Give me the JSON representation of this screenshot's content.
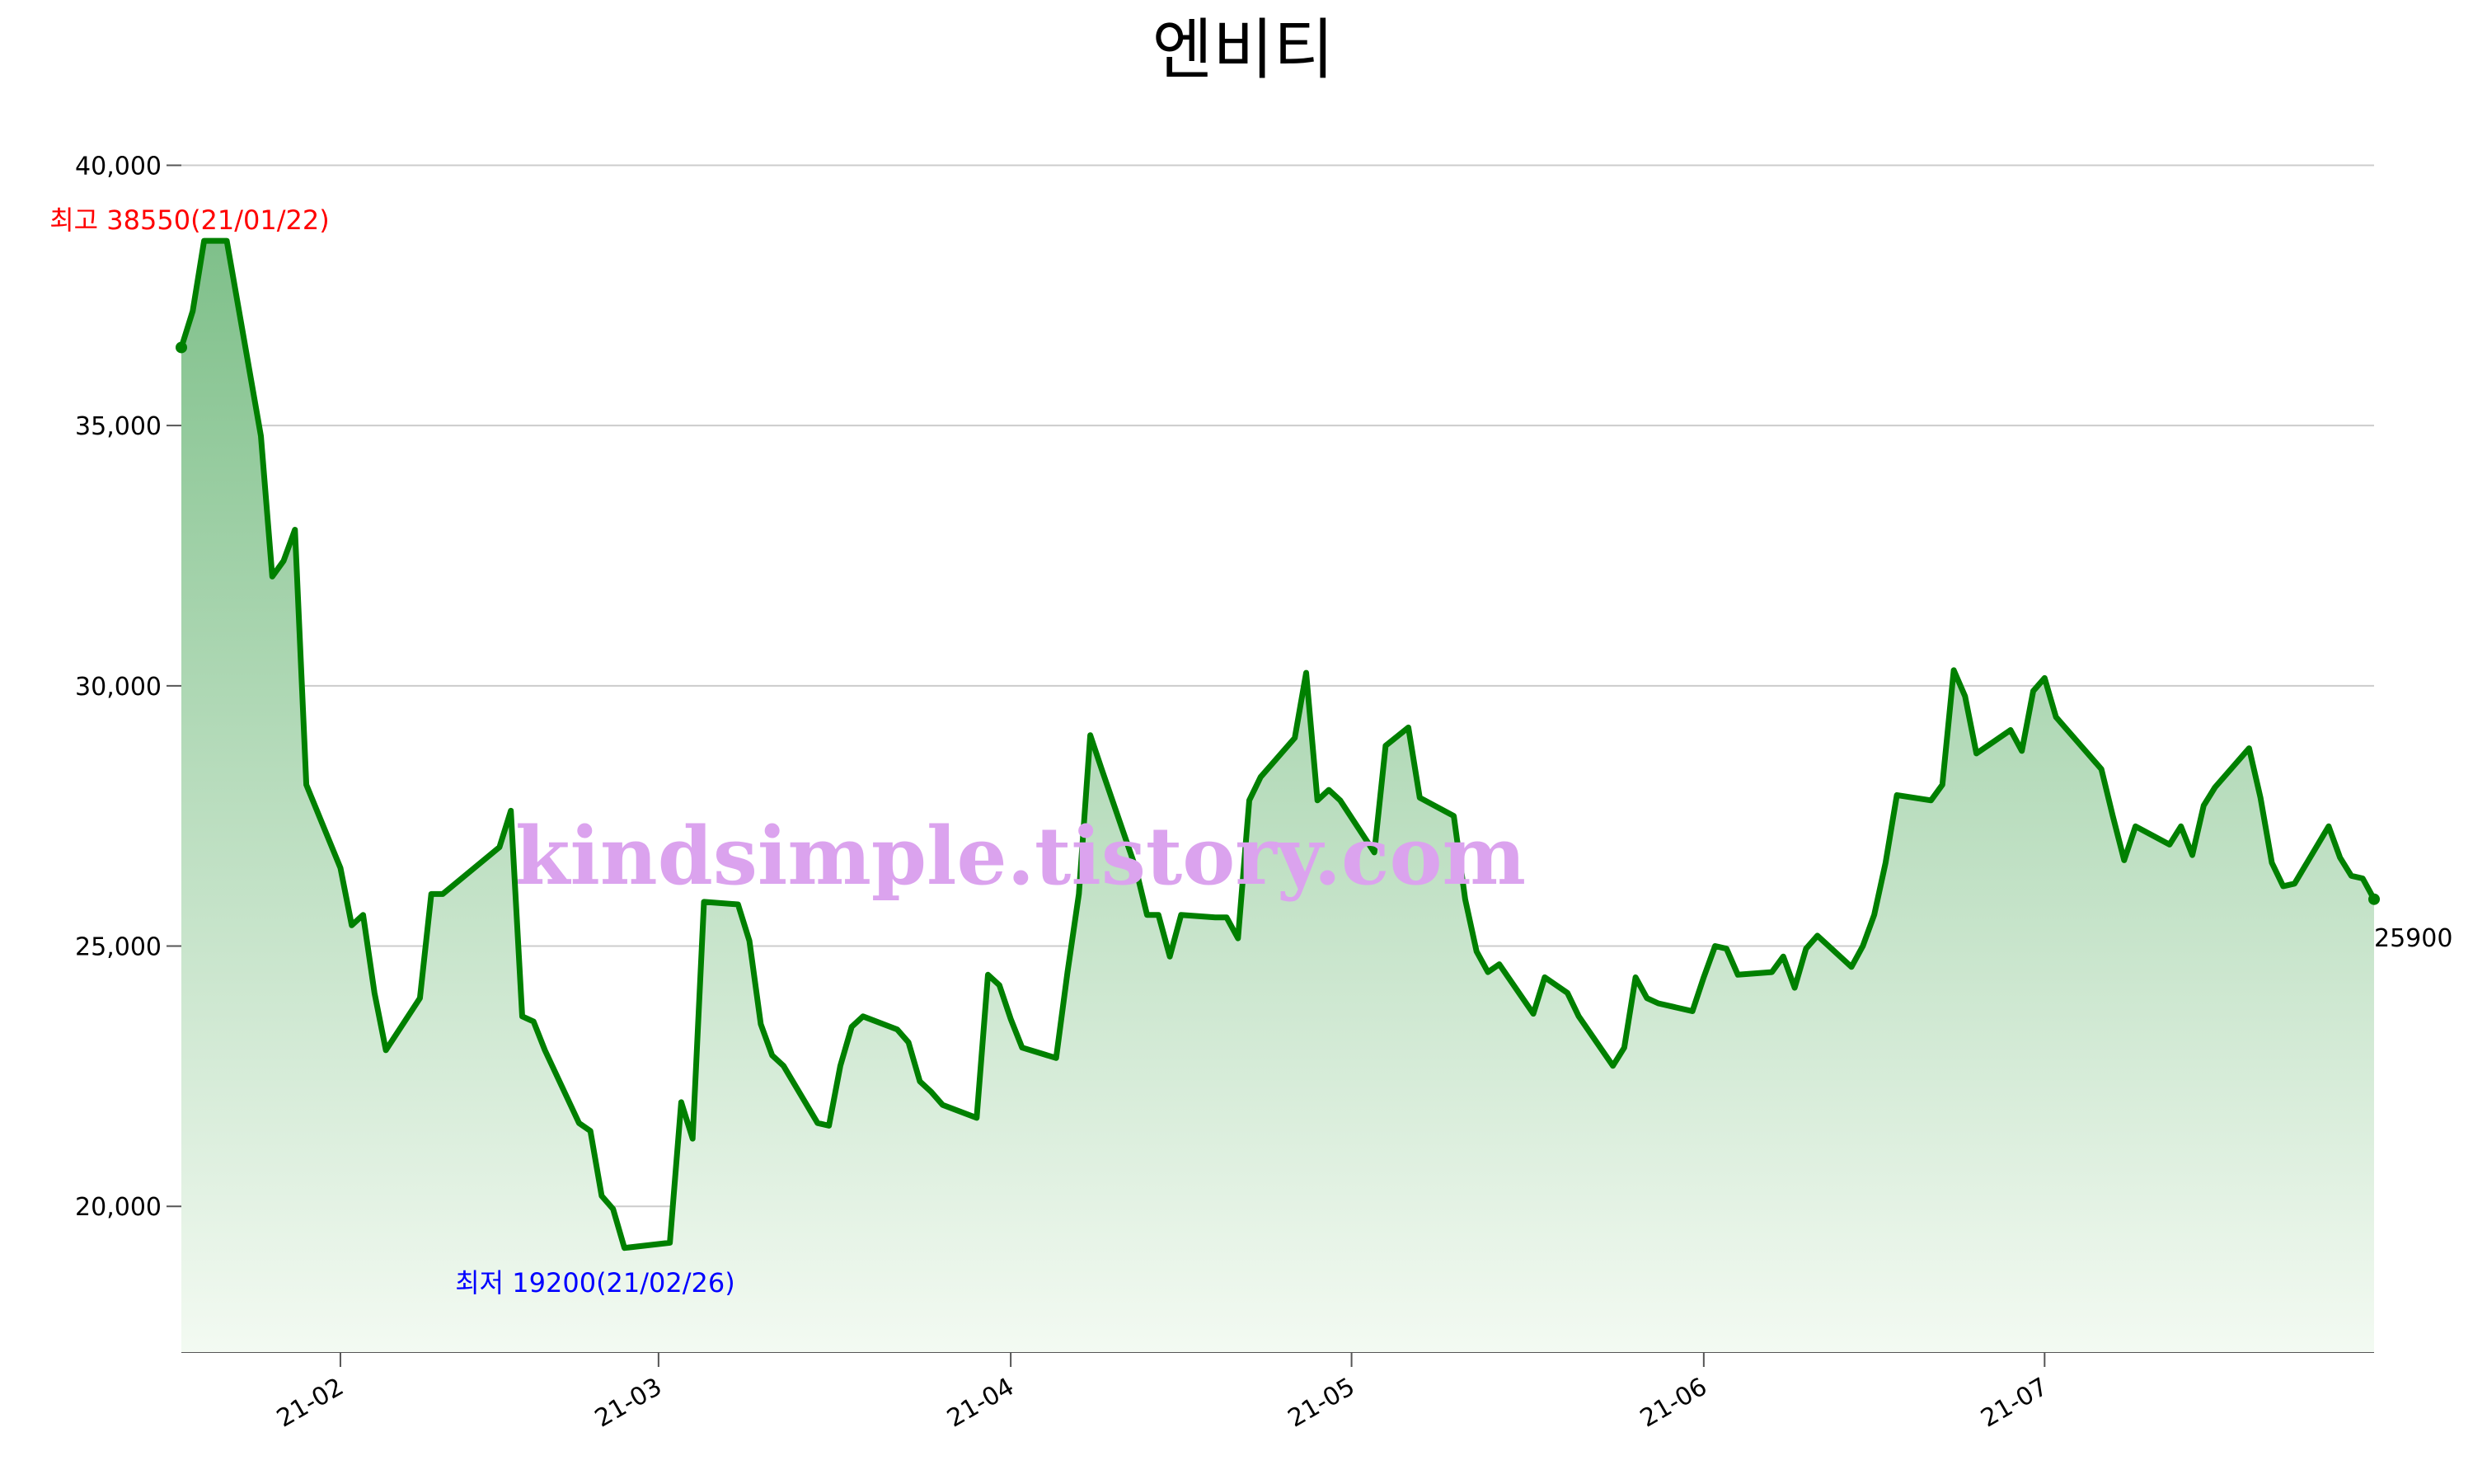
{
  "chart_data": {
    "type": "area",
    "title": "엔비티",
    "xlabel": "",
    "ylabel": "",
    "ylim": [
      17200,
      40800
    ],
    "xlim": [
      "2021-01-18",
      "2021-07-30"
    ],
    "yticks": [
      20000,
      25000,
      30000,
      35000,
      40000
    ],
    "ytick_labels": [
      "20,000",
      "25,000",
      "30,000",
      "35,000",
      "40,000"
    ],
    "xticks": [
      "2021-02-01",
      "2021-03-01",
      "2021-04-01",
      "2021-05-01",
      "2021-06-01",
      "2021-07-01"
    ],
    "xtick_labels": [
      "21-02",
      "21-03",
      "21-04",
      "21-05",
      "21-06",
      "21-07"
    ],
    "grid": "horizontal",
    "colors": {
      "line": "#008000",
      "fill_top": "#7fc08a",
      "fill_bottom": "#f3faf2",
      "max_label": "#ff0000",
      "min_label": "#0000ff",
      "watermark": "#dba3ee"
    },
    "max_label": "최고 38550(21/01/22)",
    "min_label": "최저 19200(21/02/26)",
    "last_label": "25900",
    "watermark": "kindsimple.tistory.com",
    "series": [
      {
        "points": [
          [
            "2021-01-18",
            36500
          ],
          [
            "2021-01-19",
            37200
          ],
          [
            "2021-01-20",
            38550
          ],
          [
            "2021-01-22",
            38550
          ],
          [
            "2021-01-25",
            34800
          ],
          [
            "2021-01-26",
            32100
          ],
          [
            "2021-01-27",
            32400
          ],
          [
            "2021-01-28",
            33000
          ],
          [
            "2021-01-29",
            28100
          ],
          [
            "2021-02-01",
            26500
          ],
          [
            "2021-02-02",
            25400
          ],
          [
            "2021-02-03",
            25600
          ],
          [
            "2021-02-04",
            24100
          ],
          [
            "2021-02-05",
            23000
          ],
          [
            "2021-02-08",
            24000
          ],
          [
            "2021-02-09",
            26000
          ],
          [
            "2021-02-10",
            26000
          ],
          [
            "2021-02-15",
            26900
          ],
          [
            "2021-02-16",
            27600
          ],
          [
            "2021-02-17",
            23650
          ],
          [
            "2021-02-18",
            23550
          ],
          [
            "2021-02-19",
            23000
          ],
          [
            "2021-02-22",
            21600
          ],
          [
            "2021-02-23",
            21450
          ],
          [
            "2021-02-24",
            20200
          ],
          [
            "2021-02-25",
            19950
          ],
          [
            "2021-02-26",
            19200
          ],
          [
            "2021-03-02",
            19300
          ],
          [
            "2021-03-03",
            22000
          ],
          [
            "2021-03-04",
            21300
          ],
          [
            "2021-03-05",
            25850
          ],
          [
            "2021-03-08",
            25800
          ],
          [
            "2021-03-09",
            25100
          ],
          [
            "2021-03-10",
            23500
          ],
          [
            "2021-03-11",
            22900
          ],
          [
            "2021-03-12",
            22700
          ],
          [
            "2021-03-15",
            21600
          ],
          [
            "2021-03-16",
            21550
          ],
          [
            "2021-03-17",
            22700
          ],
          [
            "2021-03-18",
            23450
          ],
          [
            "2021-03-19",
            23650
          ],
          [
            "2021-03-22",
            23400
          ],
          [
            "2021-03-23",
            23150
          ],
          [
            "2021-03-24",
            22400
          ],
          [
            "2021-03-25",
            22200
          ],
          [
            "2021-03-26",
            21950
          ],
          [
            "2021-03-29",
            21700
          ],
          [
            "2021-03-30",
            24450
          ],
          [
            "2021-03-31",
            24250
          ],
          [
            "2021-04-01",
            23600
          ],
          [
            "2021-04-02",
            23050
          ],
          [
            "2021-04-05",
            22850
          ],
          [
            "2021-04-06",
            24500
          ],
          [
            "2021-04-07",
            26000
          ],
          [
            "2021-04-08",
            29050
          ],
          [
            "2021-04-09",
            28400
          ],
          [
            "2021-04-12",
            26500
          ],
          [
            "2021-04-13",
            25600
          ],
          [
            "2021-04-14",
            25600
          ],
          [
            "2021-04-15",
            24800
          ],
          [
            "2021-04-16",
            25600
          ],
          [
            "2021-04-19",
            25550
          ],
          [
            "2021-04-20",
            25550
          ],
          [
            "2021-04-21",
            25150
          ],
          [
            "2021-04-22",
            27800
          ],
          [
            "2021-04-23",
            28250
          ],
          [
            "2021-04-26",
            29000
          ],
          [
            "2021-04-27",
            30250
          ],
          [
            "2021-04-28",
            27800
          ],
          [
            "2021-04-29",
            28000
          ],
          [
            "2021-04-30",
            27800
          ],
          [
            "2021-05-03",
            26800
          ],
          [
            "2021-05-04",
            28850
          ],
          [
            "2021-05-06",
            29200
          ],
          [
            "2021-05-07",
            27850
          ],
          [
            "2021-05-10",
            27500
          ],
          [
            "2021-05-11",
            25900
          ],
          [
            "2021-05-12",
            24900
          ],
          [
            "2021-05-13",
            24500
          ],
          [
            "2021-05-14",
            24650
          ],
          [
            "2021-05-17",
            23700
          ],
          [
            "2021-05-18",
            24400
          ],
          [
            "2021-05-20",
            24100
          ],
          [
            "2021-05-21",
            23650
          ],
          [
            "2021-05-24",
            22700
          ],
          [
            "2021-05-25",
            23050
          ],
          [
            "2021-05-26",
            24400
          ],
          [
            "2021-05-27",
            24000
          ],
          [
            "2021-05-28",
            23900
          ],
          [
            "2021-05-31",
            23750
          ],
          [
            "2021-06-01",
            24400
          ],
          [
            "2021-06-02",
            25000
          ],
          [
            "2021-06-03",
            24950
          ],
          [
            "2021-06-04",
            24450
          ],
          [
            "2021-06-07",
            24500
          ],
          [
            "2021-06-08",
            24800
          ],
          [
            "2021-06-09",
            24200
          ],
          [
            "2021-06-10",
            24950
          ],
          [
            "2021-06-11",
            25200
          ],
          [
            "2021-06-14",
            24600
          ],
          [
            "2021-06-15",
            25000
          ],
          [
            "2021-06-16",
            25600
          ],
          [
            "2021-06-17",
            26600
          ],
          [
            "2021-06-18",
            27900
          ],
          [
            "2021-06-21",
            27800
          ],
          [
            "2021-06-22",
            28100
          ],
          [
            "2021-06-23",
            30300
          ],
          [
            "2021-06-24",
            29800
          ],
          [
            "2021-06-25",
            28700
          ],
          [
            "2021-06-28",
            29150
          ],
          [
            "2021-06-29",
            28750
          ],
          [
            "2021-06-30",
            29900
          ],
          [
            "2021-07-01",
            30150
          ],
          [
            "2021-07-02",
            29400
          ],
          [
            "2021-07-05",
            28650
          ],
          [
            "2021-07-06",
            28400
          ],
          [
            "2021-07-07",
            27500
          ],
          [
            "2021-07-08",
            26650
          ],
          [
            "2021-07-09",
            27300
          ],
          [
            "2021-07-12",
            26950
          ],
          [
            "2021-07-13",
            27300
          ],
          [
            "2021-07-14",
            26750
          ],
          [
            "2021-07-15",
            27700
          ],
          [
            "2021-07-16",
            28050
          ],
          [
            "2021-07-19",
            28800
          ],
          [
            "2021-07-20",
            27850
          ],
          [
            "2021-07-21",
            26600
          ],
          [
            "2021-07-22",
            26150
          ],
          [
            "2021-07-23",
            26200
          ],
          [
            "2021-07-26",
            27300
          ],
          [
            "2021-07-27",
            26700
          ],
          [
            "2021-07-28",
            26350
          ],
          [
            "2021-07-29",
            26300
          ],
          [
            "2021-07-30",
            25900
          ]
        ]
      }
    ]
  }
}
